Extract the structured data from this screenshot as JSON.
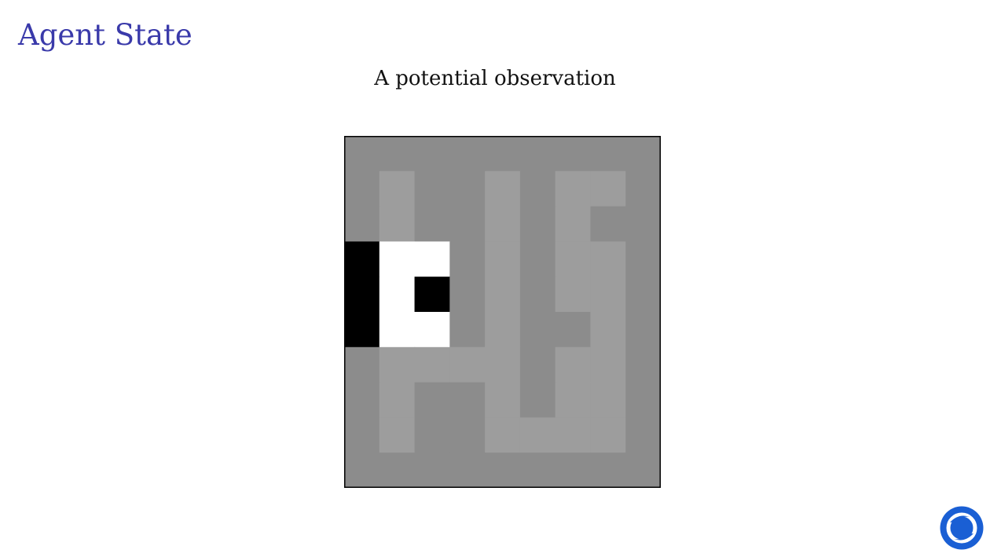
{
  "slide": {
    "title": "Agent State",
    "subtitle": "A potential observation"
  },
  "maze": {
    "cols": 9,
    "rows": 10,
    "legend_colors": {
      "wall": "#8c8c8c",
      "corridor": "#9d9d9d",
      "visible": "#ffffff",
      "blocked": "#000000",
      "border": "#000000"
    },
    "grid": [
      "WWWWWWWWW",
      "WCWWCWCCW",
      "WCWWCWCWW",
      "BVVWCWCCW",
      "BVBWCWCCW",
      "BVVWCWWCW",
      "WCCCCWCCW",
      "WCWWCWCCW",
      "WCWWCCCCW",
      "WWWWWWWWW"
    ]
  },
  "brand": {
    "logo_icon": "deepmind-logo-icon",
    "logo_color": "#1a5fd4"
  }
}
